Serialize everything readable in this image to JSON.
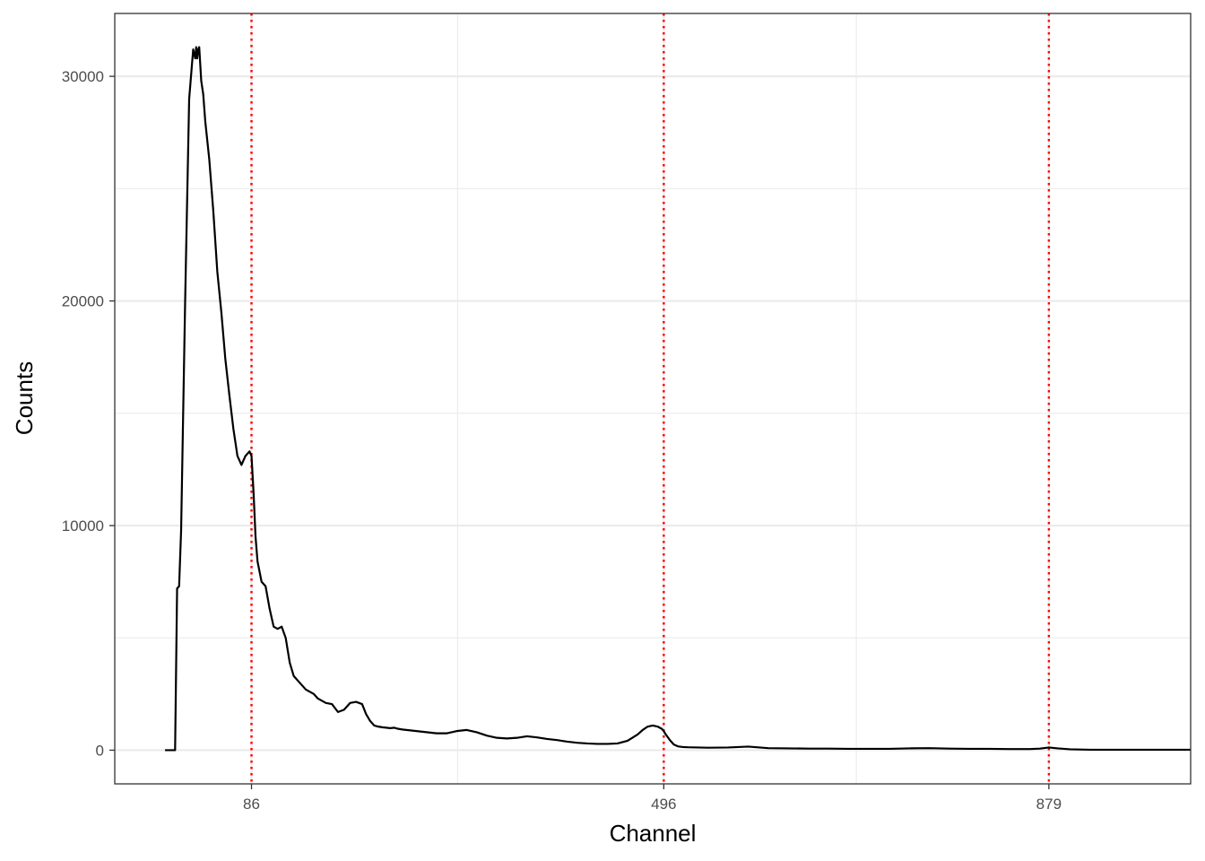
{
  "chart_data": {
    "type": "line",
    "title": "",
    "xlabel": "Channel",
    "ylabel": "Counts",
    "xlim": [
      -50,
      1020
    ],
    "ylim": [
      -1500,
      32800
    ],
    "x_ticks": [
      86,
      496,
      879
    ],
    "x_minor_grid": [
      291,
      687.5
    ],
    "y_ticks": [
      0,
      10000,
      20000,
      30000
    ],
    "y_minor_grid": [
      5000,
      15000,
      25000
    ],
    "grid": true,
    "legend": "none",
    "line_color": "#000000",
    "marker_color": "#ff0000",
    "reference_lines": [
      86,
      496,
      879
    ],
    "series": [
      {
        "x": [
          0,
          10,
          12,
          14,
          16,
          20,
          24,
          28,
          30,
          31,
          32,
          33,
          34,
          36,
          38,
          40,
          44,
          48,
          52,
          56,
          60,
          64,
          68,
          72,
          76,
          80,
          84,
          86,
          88,
          90,
          92,
          96,
          100,
          104,
          108,
          112,
          116,
          120,
          124,
          128,
          132,
          136,
          140,
          144,
          148,
          152,
          156,
          160,
          166,
          172,
          178,
          184,
          190,
          196,
          200,
          204,
          208,
          212,
          216,
          220,
          224,
          228,
          232,
          236,
          240,
          250,
          260,
          270,
          280,
          290,
          300,
          310,
          320,
          330,
          340,
          350,
          360,
          370,
          380,
          390,
          400,
          410,
          420,
          430,
          440,
          450,
          460,
          470,
          475,
          480,
          485,
          490,
          494,
          496,
          498,
          502,
          506,
          510,
          515,
          520,
          530,
          540,
          560,
          580,
          600,
          620,
          640,
          660,
          680,
          700,
          720,
          740,
          760,
          780,
          800,
          820,
          840,
          860,
          870,
          879,
          888,
          900,
          920,
          940,
          960,
          980,
          1000,
          1020
        ],
        "y": [
          0,
          0,
          7200,
          7300,
          9800,
          20000,
          29000,
          31200,
          30800,
          31300,
          30800,
          31200,
          31300,
          29800,
          29200,
          28000,
          26300,
          24000,
          21300,
          19500,
          17400,
          15800,
          14300,
          13100,
          12700,
          13100,
          13300,
          13100,
          11500,
          9500,
          8400,
          7500,
          7300,
          6300,
          5500,
          5400,
          5500,
          5000,
          3900,
          3300,
          3100,
          2900,
          2700,
          2600,
          2500,
          2300,
          2200,
          2100,
          2050,
          1700,
          1800,
          2100,
          2150,
          2050,
          1600,
          1300,
          1100,
          1050,
          1020,
          1000,
          980,
          1000,
          950,
          920,
          900,
          850,
          800,
          750,
          750,
          850,
          900,
          800,
          650,
          550,
          520,
          550,
          620,
          570,
          500,
          450,
          380,
          330,
          300,
          280,
          280,
          300,
          420,
          700,
          900,
          1050,
          1100,
          1050,
          950,
          850,
          700,
          450,
          250,
          170,
          140,
          130,
          120,
          110,
          120,
          160,
          90,
          80,
          70,
          70,
          60,
          60,
          60,
          80,
          90,
          70,
          60,
          60,
          50,
          50,
          70,
          120,
          80,
          40,
          20,
          20,
          20,
          20,
          20,
          20
        ]
      }
    ]
  }
}
